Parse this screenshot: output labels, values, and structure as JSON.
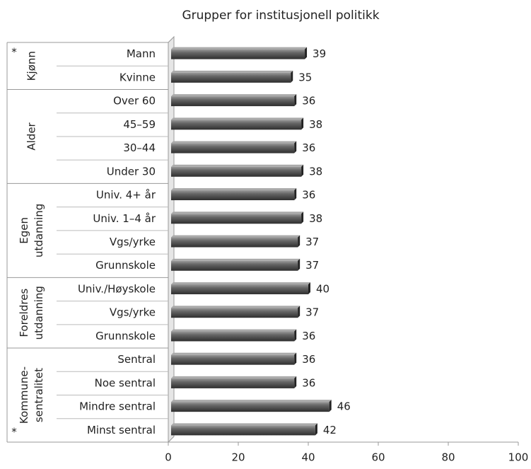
{
  "chart_data": {
    "type": "bar",
    "title": "Grupper for institusjonell politikk",
    "groups": [
      {
        "label": [
          "Kjønn"
        ],
        "marker": "*",
        "categories": [
          "Mann",
          "Kvinne"
        ],
        "values": [
          39,
          35
        ]
      },
      {
        "label": [
          "Alder"
        ],
        "categories": [
          "Over 60",
          "45–59",
          "30–44",
          "Under 30"
        ],
        "values": [
          36,
          38,
          36,
          38
        ]
      },
      {
        "label": [
          "Egen",
          "utdanning"
        ],
        "categories": [
          "Univ. 4+ år",
          "Univ. 1–4 år",
          "Vgs/yrke",
          "Grunnskole"
        ],
        "values": [
          36,
          38,
          37,
          37
        ]
      },
      {
        "label": [
          "Foreldres",
          "utdanning"
        ],
        "categories": [
          "Univ./Høyskole",
          "Vgs/yrke",
          "Grunnskole"
        ],
        "values": [
          40,
          37,
          36
        ]
      },
      {
        "label": [
          "Kommune-",
          "sentralitet"
        ],
        "marker": "*",
        "categories": [
          "Sentral",
          "Noe sentral",
          "Mindre sentral",
          "Minst sentral"
        ],
        "values": [
          36,
          36,
          46,
          42
        ]
      }
    ],
    "xlim": [
      0,
      100
    ],
    "xticks": [
      0,
      20,
      40,
      60,
      80,
      100
    ],
    "color": "#555555"
  }
}
